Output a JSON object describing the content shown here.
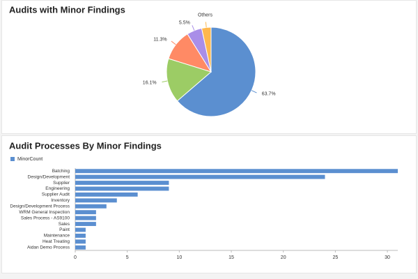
{
  "chart_data": [
    {
      "type": "pie",
      "title": "Audits with Minor Findings",
      "categories": [
        null,
        null,
        null,
        null,
        "Others"
      ],
      "values": [
        63.7,
        16.1,
        11.3,
        5.5,
        3.4
      ],
      "value_labels": [
        "63.7%",
        "16.1%",
        "11.3%",
        "5.5%",
        null
      ],
      "colors": [
        "#5b8fd0",
        "#9ccc65",
        "#ff8a65",
        "#a98ee8",
        "#ffb74d"
      ]
    },
    {
      "type": "bar",
      "horizontal": true,
      "title": "Audit Processes By Minor Findings",
      "categories": [
        "Batching",
        "Design/Development",
        "Supplier",
        "Engineering",
        "Supplier Audit",
        "Inventory",
        "Design/Development Process",
        "WRM General Inspection",
        "Sales Process - AS9100",
        "Sales",
        "Paint",
        "Maintenance",
        "Heat Treating",
        "Aidan Demo Process"
      ],
      "series": [
        {
          "name": "MinorCount",
          "color": "#5b8fd0",
          "values": [
            31,
            24,
            9,
            9,
            6,
            4,
            3,
            2,
            2,
            2,
            1,
            1,
            1,
            1
          ]
        }
      ],
      "xlim": [
        0,
        31
      ],
      "xticks": [
        0,
        5,
        10,
        15,
        20,
        25,
        30
      ],
      "legend": "top-left"
    }
  ]
}
